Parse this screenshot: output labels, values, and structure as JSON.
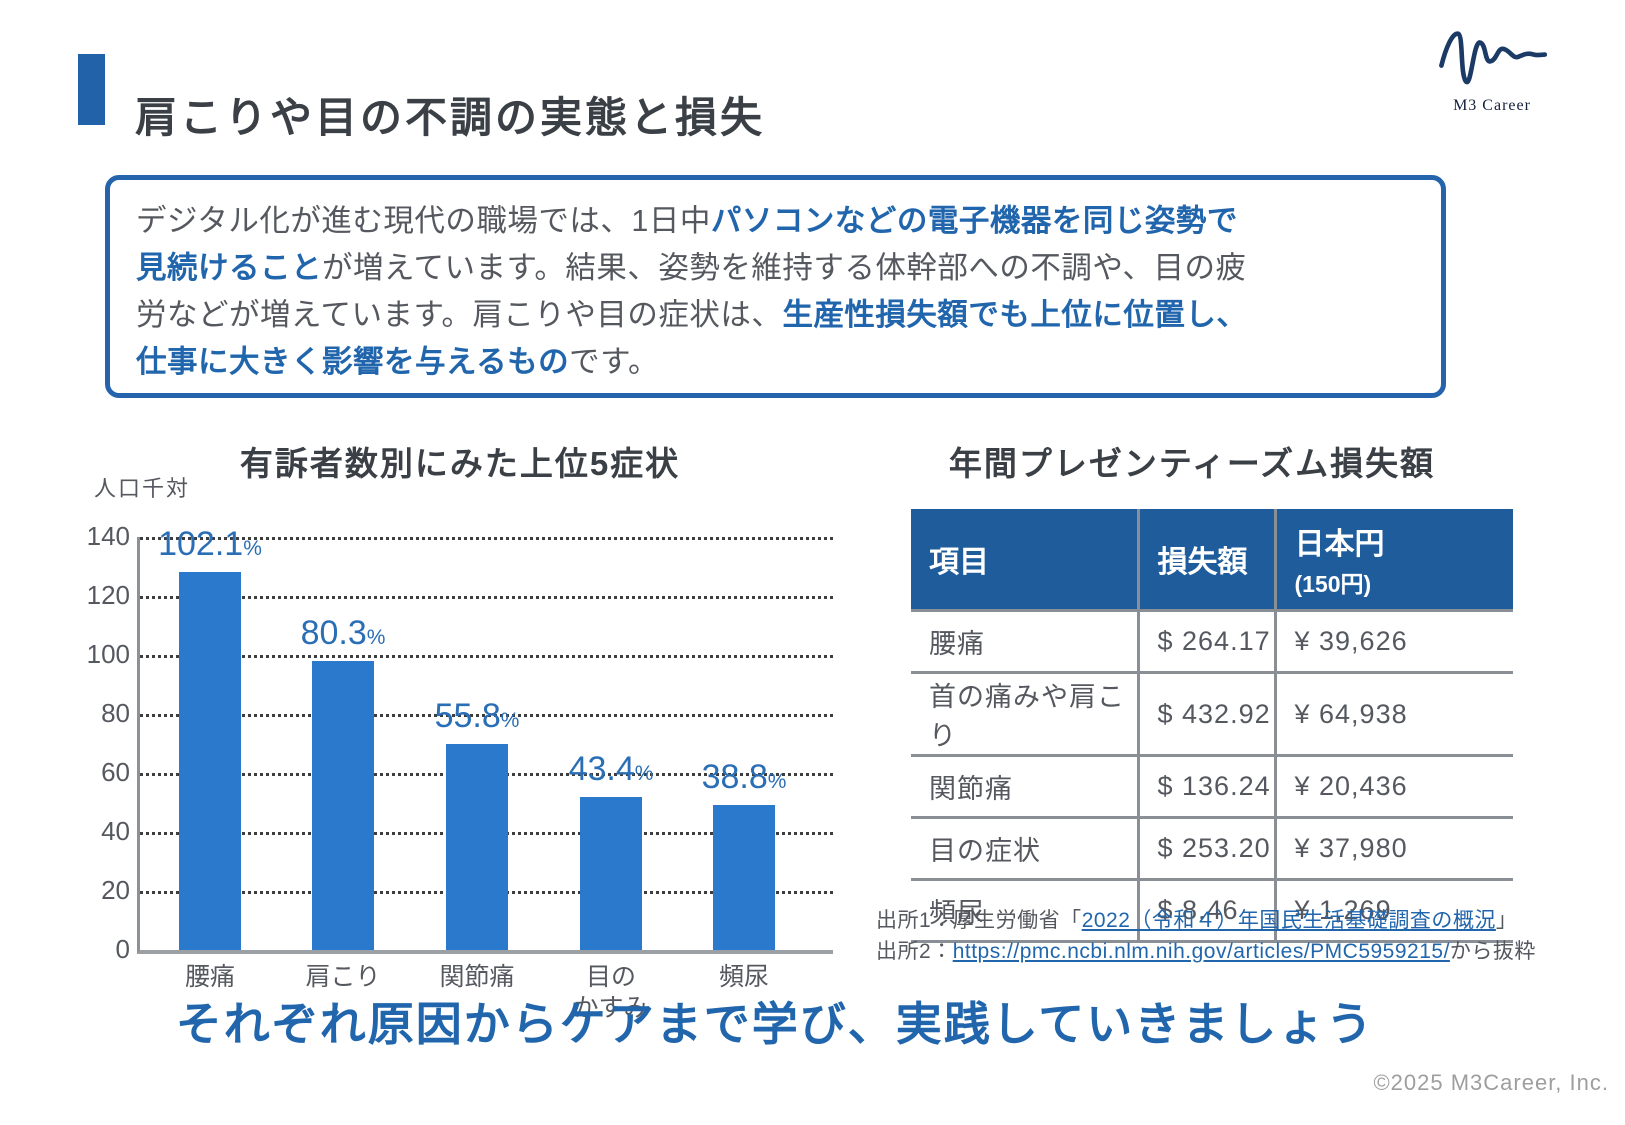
{
  "page": {
    "title": "肩こりや目の不調の実態と損失",
    "bottom_headline": "それぞれ原因からケアまで学び、実践していきましょう",
    "copyright": "©2025 M3Career, Inc."
  },
  "logo": {
    "name": "M3 Career"
  },
  "intro_box": {
    "lines": [
      [
        {
          "t": "デジタル化が進む現代の職場では、1日中",
          "b": false
        },
        {
          "t": "パソコンなどの電子機器を同じ姿勢で",
          "b": true
        }
      ],
      [
        {
          "t": "見続けること",
          "b": true
        },
        {
          "t": "が増えています。結果、姿勢を維持する体幹部への不調や、目の疲",
          "b": false
        }
      ],
      [
        {
          "t": "労などが増えています。肩こりや目の症状は、",
          "b": false
        },
        {
          "t": "生産性損失額でも上位に位置し、",
          "b": true
        }
      ],
      [
        {
          "t": "仕事に大きく影響を与えるもの",
          "b": true
        },
        {
          "t": "です。",
          "b": false
        }
      ]
    ]
  },
  "chart_data": {
    "type": "bar",
    "title": "有訴者数別にみた上位5症状",
    "ylabel": "人口千対",
    "categories": [
      "腰痛",
      "肩こり",
      "関節痛",
      "目の\nかすみ",
      "頻尿"
    ],
    "values": [
      102.1,
      80.3,
      55.8,
      43.4,
      38.8
    ],
    "data_labels": [
      "102.1",
      "80.3",
      "55.8",
      "43.4",
      "38.8"
    ],
    "data_label_suffix": "%",
    "bar_heights_as_drawn": [
      128,
      98,
      70,
      52,
      49
    ],
    "ylim": [
      0,
      140
    ],
    "yticks": [
      140,
      120,
      100,
      80,
      60,
      40,
      20,
      0
    ],
    "grid": "horizontal-dotted",
    "legend": "none",
    "bar_color": "#2A79CC"
  },
  "table": {
    "title": "年間プレゼンティーズム損失額",
    "headers": [
      "項目",
      "損失額",
      "日本円"
    ],
    "header3_sub": "(150円)",
    "rows": [
      [
        "腰痛",
        "$ 264.17",
        "¥ 39,626"
      ],
      [
        "首の痛みや肩こり",
        "$ 432.92",
        "¥ 64,938"
      ],
      [
        "関節痛",
        "$ 136.24",
        "¥ 20,436"
      ],
      [
        "目の症状",
        "$ 253.20",
        "¥ 37,980"
      ],
      [
        "頻尿",
        "$ 8.46",
        "¥ 1,269"
      ]
    ]
  },
  "sources": {
    "line1_prefix": "出所1：厚生労働省「",
    "line1_link": "2022（令和４）年国民生活基礎調査の概況",
    "line1_suffix": "」",
    "line2_prefix": "出所2：",
    "line2_link": "https://pmc.ncbi.nlm.nih.gov/articles/PMC5959215/",
    "line2_suffix": "から抜粋"
  },
  "colors": {
    "accent_blue": "#2262A8",
    "bar_blue": "#2A79CC",
    "table_header_blue": "#1F5C9C",
    "bold_text_blue": "#2166AC",
    "body_gray": "#55595f",
    "title_dark": "#3B4046",
    "border_blue": "#2563AC",
    "grid_gray": "#8a8f96"
  }
}
